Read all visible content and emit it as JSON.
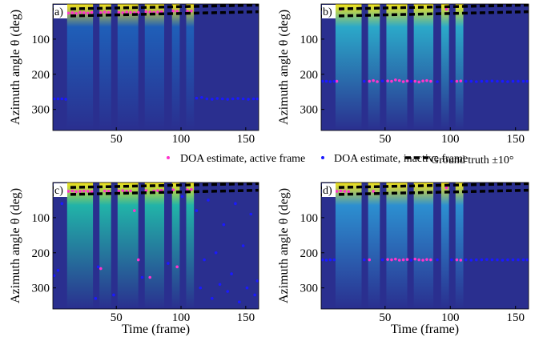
{
  "chart_data": [
    {
      "type": "heatmap-scatter",
      "panel_label": "a)",
      "ylabel": "Azimuth angle θ (deg)",
      "xlim": [
        1,
        160
      ],
      "ylim": [
        0,
        360
      ],
      "y_inverted": true,
      "xticks": [
        50,
        100,
        150
      ],
      "yticks": [
        100,
        200,
        300
      ],
      "background_color": "#2a2f8f",
      "band_colors": [
        "#1f5fb8",
        "#f5e31a"
      ],
      "active_segments": [
        [
          12,
          32
        ],
        [
          37,
          46
        ],
        [
          51,
          67
        ],
        [
          72,
          87
        ],
        [
          93,
          99
        ],
        [
          104,
          110
        ]
      ],
      "series": [
        {
          "name": "DOA estimate, active frame",
          "color": "#ff33cc",
          "kind": "points",
          "x": [
            13,
            16,
            19,
            22,
            25,
            28,
            31,
            38,
            41,
            44,
            52,
            55,
            58,
            61,
            64,
            67,
            73,
            76,
            79,
            82,
            85,
            94,
            97,
            105,
            108
          ],
          "values": [
            26,
            25,
            27,
            24,
            25,
            26,
            24,
            25,
            23,
            24,
            24,
            25,
            23,
            24,
            25,
            24,
            22,
            23,
            24,
            23,
            22,
            20,
            21,
            21,
            20
          ]
        },
        {
          "name": "DOA estimate, inactive frame",
          "color": "#1a1aff",
          "kind": "points",
          "x": [
            2,
            5,
            8,
            11,
            112,
            116,
            120,
            124,
            128,
            132,
            136,
            140,
            144,
            148,
            152,
            156,
            159
          ],
          "values": [
            270,
            270,
            270,
            271,
            268,
            266,
            270,
            271,
            269,
            270,
            271,
            270,
            269,
            270,
            271,
            270,
            270
          ]
        },
        {
          "name": "Ground truth ±10°",
          "color": "#000000",
          "kind": "dashed",
          "x": [
            1,
            160
          ],
          "values": [
            15,
            3
          ]
        },
        {
          "color": "#000000",
          "kind": "dashed",
          "x": [
            1,
            160
          ],
          "values": [
            35,
            22
          ]
        }
      ]
    },
    {
      "type": "heatmap-scatter",
      "panel_label": "b)",
      "ylabel": "Azimuth angle θ (deg)",
      "xlim": [
        1,
        160
      ],
      "ylim": [
        0,
        360
      ],
      "y_inverted": true,
      "xticks": [
        50,
        100,
        150
      ],
      "yticks": [
        100,
        200,
        300
      ],
      "background_color": "#2a2f8f",
      "band_colors": [
        "#2ba9c9",
        "#f5e31a"
      ],
      "active_segments": [
        [
          12,
          32
        ],
        [
          37,
          46
        ],
        [
          51,
          67
        ],
        [
          72,
          87
        ],
        [
          93,
          99
        ],
        [
          104,
          110
        ]
      ],
      "series": [
        {
          "color": "#ff33cc",
          "kind": "points",
          "x": [
            13,
            16,
            38,
            41,
            44,
            52,
            55,
            58,
            61,
            64,
            67,
            73,
            76,
            79,
            82,
            85,
            97,
            105,
            108
          ],
          "values": [
            220,
            15,
            220,
            218,
            221,
            219,
            220,
            216,
            218,
            221,
            219,
            220,
            222,
            219,
            218,
            220,
            15,
            220,
            219
          ]
        },
        {
          "color": "#1a1aff",
          "kind": "points",
          "x": [
            2,
            5,
            8,
            11,
            34,
            48,
            70,
            90,
            101,
            112,
            116,
            120,
            124,
            128,
            132,
            136,
            140,
            144,
            148,
            152,
            156,
            159
          ],
          "values": [
            220,
            220,
            221,
            220,
            220,
            219,
            220,
            221,
            220,
            220,
            220,
            221,
            220,
            220,
            219,
            220,
            220,
            221,
            220,
            220,
            220,
            220
          ]
        },
        {
          "color": "#000000",
          "kind": "dashed",
          "x": [
            1,
            160
          ],
          "values": [
            15,
            3
          ]
        },
        {
          "color": "#000000",
          "kind": "dashed",
          "x": [
            1,
            160
          ],
          "values": [
            35,
            22
          ]
        }
      ]
    },
    {
      "type": "heatmap-scatter",
      "panel_label": "c)",
      "ylabel": "Azimuth angle θ (deg)",
      "xlabel": "Time (frame)",
      "xlim": [
        1,
        160
      ],
      "ylim": [
        0,
        360
      ],
      "y_inverted": true,
      "xticks": [
        50,
        100,
        150
      ],
      "yticks": [
        100,
        200,
        300
      ],
      "background_color": "#2a2f8f",
      "band_colors": [
        "#21b3a8",
        "#f5e31a"
      ],
      "active_segments": [
        [
          12,
          32
        ],
        [
          37,
          46
        ],
        [
          51,
          67
        ],
        [
          72,
          87
        ],
        [
          93,
          99
        ],
        [
          104,
          110
        ]
      ],
      "series": [
        {
          "color": "#ff33cc",
          "kind": "points",
          "x": [
            13,
            16,
            19,
            22,
            25,
            28,
            31,
            38,
            41,
            44,
            52,
            55,
            58,
            61,
            64,
            67,
            73,
            76,
            79,
            82,
            85,
            94,
            97,
            105,
            108
          ],
          "values": [
            25,
            24,
            26,
            25,
            24,
            25,
            26,
            245,
            24,
            25,
            24,
            23,
            25,
            24,
            80,
            220,
            23,
            270,
            24,
            23,
            22,
            21,
            240,
            21,
            20
          ]
        },
        {
          "color": "#1a1aff",
          "kind": "points",
          "x": [
            2,
            5,
            8,
            34,
            36,
            48,
            70,
            90,
            101,
            112,
            115,
            118,
            121,
            124,
            127,
            130,
            133,
            136,
            139,
            142,
            145,
            148,
            151,
            154,
            157,
            159
          ],
          "values": [
            265,
            250,
            60,
            330,
            240,
            320,
            270,
            230,
            40,
            80,
            300,
            220,
            50,
            330,
            200,
            290,
            120,
            310,
            260,
            60,
            340,
            180,
            300,
            90,
            320,
            280
          ]
        },
        {
          "color": "#000000",
          "kind": "dashed",
          "x": [
            1,
            160
          ],
          "values": [
            15,
            3
          ]
        },
        {
          "color": "#000000",
          "kind": "dashed",
          "x": [
            1,
            160
          ],
          "values": [
            35,
            22
          ]
        }
      ]
    },
    {
      "type": "heatmap-scatter",
      "panel_label": "d)",
      "ylabel": "Azimuth angle θ (deg)",
      "xlabel": "Time (frame)",
      "xlim": [
        1,
        160
      ],
      "ylim": [
        0,
        360
      ],
      "y_inverted": true,
      "xticks": [
        50,
        100,
        150
      ],
      "yticks": [
        100,
        200,
        300
      ],
      "background_color": "#2a2f8f",
      "band_colors": [
        "#2c8fd0",
        "#f5e31a"
      ],
      "active_segments": [
        [
          12,
          32
        ],
        [
          37,
          46
        ],
        [
          51,
          67
        ],
        [
          72,
          87
        ],
        [
          93,
          99
        ],
        [
          104,
          110
        ]
      ],
      "series": [
        {
          "color": "#ff33cc",
          "kind": "points",
          "x": [
            13,
            16,
            19,
            22,
            38,
            41,
            52,
            55,
            58,
            61,
            64,
            67,
            73,
            76,
            79,
            82,
            85,
            97,
            105,
            108
          ],
          "values": [
            25,
            24,
            25,
            26,
            220,
            25,
            219,
            220,
            218,
            221,
            220,
            219,
            218,
            220,
            221,
            219,
            220,
            15,
            220,
            221
          ]
        },
        {
          "color": "#1a1aff",
          "kind": "points",
          "x": [
            2,
            5,
            8,
            11,
            34,
            48,
            70,
            90,
            101,
            112,
            116,
            120,
            124,
            128,
            132,
            136,
            140,
            144,
            148,
            152,
            156,
            159
          ],
          "values": [
            220,
            221,
            220,
            220,
            220,
            220,
            221,
            220,
            220,
            220,
            221,
            220,
            220,
            219,
            220,
            220,
            221,
            220,
            220,
            220,
            220,
            220
          ]
        },
        {
          "color": "#000000",
          "kind": "dashed",
          "x": [
            1,
            160
          ],
          "values": [
            15,
            3
          ]
        },
        {
          "color": "#000000",
          "kind": "dashed",
          "x": [
            1,
            160
          ],
          "values": [
            35,
            22
          ]
        }
      ]
    }
  ]
}
